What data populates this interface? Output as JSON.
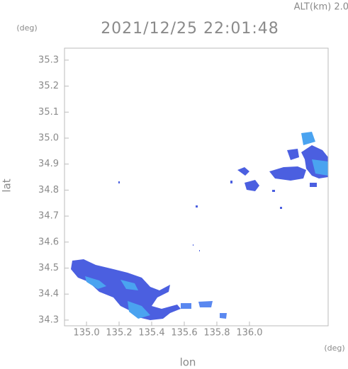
{
  "chart_data": {
    "type": "radar-map",
    "title": "2021/12/25 22:01:48",
    "subtitle": "ALT(km) 2.0",
    "x_label": "lon",
    "y_label": "lat",
    "x_unit": "(deg)",
    "y_unit": "(deg)",
    "xlim": [
      134.865,
      136.483
    ],
    "ylim": [
      34.278,
      35.346
    ],
    "xticks": [
      {
        "value": 135,
        "label": "135.0"
      },
      135.2,
      135.4,
      135.6,
      135.8,
      {
        "value": 136,
        "label": "136.0"
      }
    ],
    "yticks": [
      34.3,
      34.4,
      34.5,
      34.6,
      34.7,
      34.8,
      34.9,
      {
        "value": 35,
        "label": "35.0"
      },
      35.1,
      35.2,
      35.3
    ]
  }
}
